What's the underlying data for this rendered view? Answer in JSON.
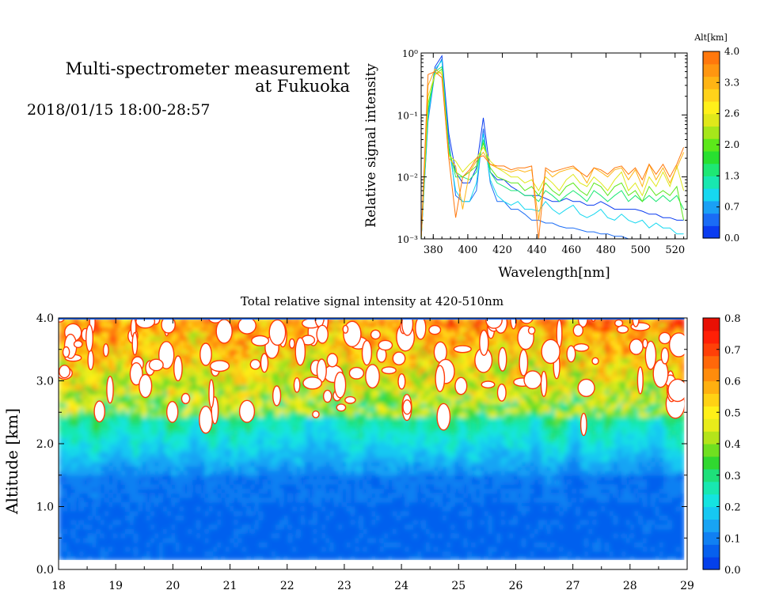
{
  "header": {
    "title_line1": "Multi-spectrometer measurement",
    "title_line2": "at Fukuoka",
    "date_range": "2018/01/15 18:00-28:57"
  },
  "spectrum_colorbar": {
    "label": "Alt[km]",
    "ticks": [
      "0.0",
      "0.7",
      "1.3",
      "2.0",
      "2.6",
      "3.3",
      "4.0"
    ],
    "colors": [
      "#0a3cf0",
      "#1a6cf5",
      "#1aa0f5",
      "#16d8f0",
      "#18e8b0",
      "#1ee874",
      "#28e030",
      "#5ce81a",
      "#a6e61a",
      "#e0e81a",
      "#fff01a",
      "#ffd21a",
      "#ffb414",
      "#ff9610",
      "#ff780c"
    ]
  },
  "intensity_colorbar": {
    "ticks": [
      "0.0",
      "0.1",
      "0.2",
      "0.3",
      "0.4",
      "0.5",
      "0.6",
      "0.7",
      "0.8"
    ],
    "colors": [
      "#0440ea",
      "#0660ee",
      "#1080f2",
      "#18a4f4",
      "#16c8f2",
      "#14e4e0",
      "#18e8b0",
      "#1ee07a",
      "#30d830",
      "#70e020",
      "#b4e41a",
      "#e8ec1a",
      "#fff018",
      "#ffd214",
      "#ffb010",
      "#ff8c0c",
      "#ff680a",
      "#ff4008",
      "#ff2006",
      "#e81004"
    ]
  },
  "chart_data": [
    {
      "type": "line",
      "ylabel": "Relative signal intensity",
      "xlabel": "Wavelength[nm]",
      "xlim": [
        373,
        527
      ],
      "ylim": [
        0.001,
        1
      ],
      "yscale": "log",
      "x_ticks": [
        "380",
        "400",
        "420",
        "440",
        "460",
        "480",
        "500",
        "520"
      ],
      "y_ticks": [
        "10⁻³",
        "10⁻²",
        "10⁻¹",
        "10⁰"
      ],
      "x": [
        373,
        377,
        381,
        385,
        389,
        393,
        397,
        401,
        405,
        409,
        413,
        417,
        421,
        425,
        429,
        433,
        437,
        441,
        445,
        449,
        453,
        457,
        461,
        465,
        469,
        473,
        477,
        481,
        485,
        489,
        493,
        497,
        501,
        505,
        509,
        513,
        517,
        521,
        525
      ],
      "series": [
        {
          "color": "#0a3cf0",
          "values": [
            0.001,
            0.1,
            0.6,
            0.9,
            0.05,
            0.012,
            0.008,
            0.008,
            0.014,
            0.09,
            0.012,
            0.009,
            0.009,
            0.007,
            0.006,
            0.005,
            0.005,
            0.005,
            0.0045,
            0.004,
            0.004,
            0.0045,
            0.004,
            0.004,
            0.0035,
            0.0035,
            0.004,
            0.0035,
            0.003,
            0.003,
            0.003,
            0.003,
            0.0028,
            0.0025,
            0.0025,
            0.0022,
            0.0022,
            0.002,
            0.002
          ]
        },
        {
          "color": "#1a6cf5",
          "values": [
            0.001,
            0.08,
            0.5,
            0.8,
            0.04,
            0.005,
            0.004,
            0.004,
            0.006,
            0.06,
            0.008,
            0.004,
            0.004,
            0.003,
            0.003,
            0.0025,
            0.002,
            0.002,
            0.0018,
            0.0018,
            0.0016,
            0.0015,
            0.0015,
            0.0014,
            0.0013,
            0.0013,
            0.0012,
            0.0012,
            0.0011,
            0.0011,
            0.001,
            0.001,
            0.001,
            0.001,
            0.001,
            0.001,
            0.001,
            0.001,
            0.001
          ]
        },
        {
          "color": "#16d8f0",
          "values": [
            0.001,
            0.09,
            0.55,
            0.75,
            0.03,
            0.006,
            0.004,
            0.004,
            0.008,
            0.05,
            0.009,
            0.005,
            0.004,
            0.0035,
            0.004,
            0.003,
            0.003,
            0.0028,
            0.004,
            0.003,
            0.0025,
            0.003,
            0.0035,
            0.0025,
            0.0022,
            0.0025,
            0.003,
            0.0022,
            0.002,
            0.0025,
            0.002,
            0.0018,
            0.002,
            0.0015,
            0.0018,
            0.0015,
            0.0015,
            0.0012,
            0.0012
          ]
        },
        {
          "color": "#1ee874",
          "values": [
            0.001,
            0.12,
            0.5,
            0.6,
            0.03,
            0.01,
            0.01,
            0.009,
            0.012,
            0.04,
            0.012,
            0.008,
            0.007,
            0.006,
            0.006,
            0.005,
            0.005,
            0.004,
            0.006,
            0.005,
            0.004,
            0.005,
            0.006,
            0.005,
            0.004,
            0.006,
            0.005,
            0.004,
            0.005,
            0.006,
            0.004,
            0.005,
            0.004,
            0.005,
            0.004,
            0.005,
            0.004,
            0.005,
            0.003
          ]
        },
        {
          "color": "#5ce81a",
          "values": [
            0.001,
            0.15,
            0.45,
            0.55,
            0.025,
            0.012,
            0.01,
            0.012,
            0.015,
            0.035,
            0.014,
            0.01,
            0.009,
            0.008,
            0.008,
            0.006,
            0.007,
            0.005,
            0.008,
            0.006,
            0.005,
            0.007,
            0.008,
            0.006,
            0.005,
            0.008,
            0.007,
            0.005,
            0.007,
            0.008,
            0.005,
            0.006,
            0.004,
            0.007,
            0.005,
            0.006,
            0.005,
            0.007,
            0.002
          ]
        },
        {
          "color": "#e0e81a",
          "values": [
            0.001,
            0.2,
            0.45,
            0.5,
            0.022,
            0.018,
            0.012,
            0.016,
            0.02,
            0.03,
            0.018,
            0.014,
            0.012,
            0.01,
            0.01,
            0.008,
            0.009,
            0.006,
            0.01,
            0.008,
            0.006,
            0.009,
            0.011,
            0.008,
            0.007,
            0.01,
            0.008,
            0.006,
            0.009,
            0.012,
            0.006,
            0.008,
            0.005,
            0.01,
            0.007,
            0.012,
            0.007,
            0.015,
            0.006
          ]
        },
        {
          "color": "#ffb414",
          "values": [
            0.001,
            0.3,
            0.55,
            0.45,
            0.02,
            0.015,
            0.003,
            0.012,
            0.018,
            0.025,
            0.016,
            0.014,
            0.013,
            0.012,
            0.013,
            0.012,
            0.013,
            0.002,
            0.013,
            0.01,
            0.012,
            0.013,
            0.014,
            0.012,
            0.008,
            0.014,
            0.012,
            0.01,
            0.013,
            0.014,
            0.009,
            0.013,
            0.007,
            0.016,
            0.009,
            0.014,
            0.008,
            0.014,
            0.025
          ]
        },
        {
          "color": "#ff780c",
          "values": [
            0.001,
            0.45,
            0.5,
            0.4,
            0.02,
            0.0022,
            0.01,
            0.013,
            0.02,
            0.022,
            0.016,
            0.015,
            0.015,
            0.013,
            0.014,
            0.014,
            0.015,
            0.001,
            0.014,
            0.012,
            0.013,
            0.014,
            0.015,
            0.012,
            0.01,
            0.014,
            0.013,
            0.011,
            0.014,
            0.015,
            0.011,
            0.014,
            0.009,
            0.016,
            0.011,
            0.016,
            0.01,
            0.016,
            0.03
          ]
        }
      ]
    },
    {
      "type": "heatmap",
      "title": "Total relative signal intensity at 420-510nm",
      "ylabel": "Altitude [km]",
      "xlim": [
        18,
        29
      ],
      "ylim": [
        0,
        4
      ],
      "x_ticks": [
        "18",
        "19",
        "20",
        "21",
        "22",
        "23",
        "24",
        "25",
        "26",
        "27",
        "28",
        "29"
      ],
      "y_ticks": [
        "0.0",
        "1.0",
        "2.0",
        "3.0",
        "4.0"
      ],
      "zlim": [
        0,
        0.8
      ],
      "data_extent": {
        "x": [
          18,
          28.95
        ],
        "y": [
          0.15,
          4.0
        ]
      }
    }
  ]
}
